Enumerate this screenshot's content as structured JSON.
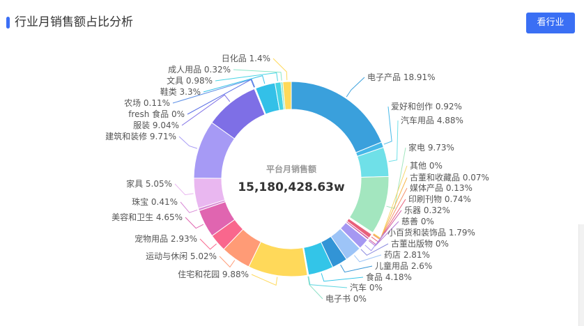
{
  "header": {
    "title": "行业月销售额占比分析",
    "button_label": "看行业"
  },
  "chart_data": {
    "type": "pie",
    "title": "",
    "center_label": "平台月销售额",
    "center_value": "15,180,428.63w",
    "slices": [
      {
        "name": "电子产品",
        "value": 18.91,
        "text": "电子产品  18.91%",
        "color": "#3aa0dc"
      },
      {
        "name": "爱好和创作",
        "value": 0.92,
        "text": "爱好和创作  0.92%",
        "color": "#46b8e8"
      },
      {
        "name": "汽车用品",
        "value": 4.88,
        "text": "汽车用品  4.88%",
        "color": "#6fe0e8"
      },
      {
        "name": "家电",
        "value": 9.73,
        "text": "家电  9.73%",
        "color": "#a3e6bf"
      },
      {
        "name": "其他",
        "value": 0,
        "text": "其他  0%",
        "color": "#f7d66b"
      },
      {
        "name": "古董和收藏品",
        "value": 0.07,
        "text": "古董和收藏品  0.07%",
        "color": "#f7b64a"
      },
      {
        "name": "媒体产品",
        "value": 0.13,
        "text": "媒体产品  0.13%",
        "color": "#f5946b"
      },
      {
        "name": "印刷刊物",
        "value": 0.74,
        "text": "印刷刊物  0.74%",
        "color": "#e8607a"
      },
      {
        "name": "乐器",
        "value": 0.32,
        "text": "乐器  0.32%",
        "color": "#d0569e"
      },
      {
        "name": "慈善",
        "value": 0,
        "text": "慈善  0%",
        "color": "#b47ad8"
      },
      {
        "name": "小百货和装饰品",
        "value": 1.79,
        "text": "小百货和装饰品  1.79%",
        "color": "#a598f2"
      },
      {
        "name": "古董出版物",
        "value": 0,
        "text": "古董出版物  0%",
        "color": "#8c8ce0"
      },
      {
        "name": "药店",
        "value": 2.81,
        "text": "药店  2.81%",
        "color": "#9dc4f7"
      },
      {
        "name": "儿童用品",
        "value": 2.6,
        "text": "儿童用品  2.6%",
        "color": "#3294d6"
      },
      {
        "name": "食品",
        "value": 4.18,
        "text": "食品  4.18%",
        "color": "#33c5e8"
      },
      {
        "name": "汽车",
        "value": 0,
        "text": "汽车  0%",
        "color": "#5fd6e0"
      },
      {
        "name": "电子书",
        "value": 0,
        "text": "电子书  0%",
        "color": "#8de0c6"
      },
      {
        "name": "住宅和花园",
        "value": 9.88,
        "text": "住宅和花园  9.88%",
        "color": "#ffd95a"
      },
      {
        "name": "运动与休闲",
        "value": 5.02,
        "text": "运动与休闲  5.02%",
        "color": "#ff9b76"
      },
      {
        "name": "宠物用品",
        "value": 2.93,
        "text": "宠物用品  2.93%",
        "color": "#f9678d"
      },
      {
        "name": "美容和卫生",
        "value": 4.65,
        "text": "美容和卫生  4.65%",
        "color": "#e065b0"
      },
      {
        "name": "珠宝",
        "value": 0.41,
        "text": "珠宝  0.41%",
        "color": "#d889d6"
      },
      {
        "name": "家具",
        "value": 5.05,
        "text": "家具  5.05%",
        "color": "#e9b7f0"
      },
      {
        "name": "建筑和装修",
        "value": 9.71,
        "text": "建筑和装修  9.71%",
        "color": "#a69af5"
      },
      {
        "name": "服装",
        "value": 9.04,
        "text": "服装  9.04%",
        "color": "#7e6fe6"
      },
      {
        "name": "fresh 食品",
        "value": 0,
        "text": "fresh 食品  0%",
        "color": "#5a6fe6"
      },
      {
        "name": "农场",
        "value": 0.11,
        "text": "农场  0.11%",
        "color": "#5a8ee6"
      },
      {
        "name": "鞋类",
        "value": 3.3,
        "text": "鞋类  3.3%",
        "color": "#33c0e8"
      },
      {
        "name": "文具",
        "value": 0.98,
        "text": "文具  0.98%",
        "color": "#46d4e4"
      },
      {
        "name": "成人用品",
        "value": 0.32,
        "text": "成人用品  0.32%",
        "color": "#8ae6c8"
      },
      {
        "name": "日化品",
        "value": 1.4,
        "text": "日化品  1.4%",
        "color": "#ffd95a"
      }
    ]
  }
}
